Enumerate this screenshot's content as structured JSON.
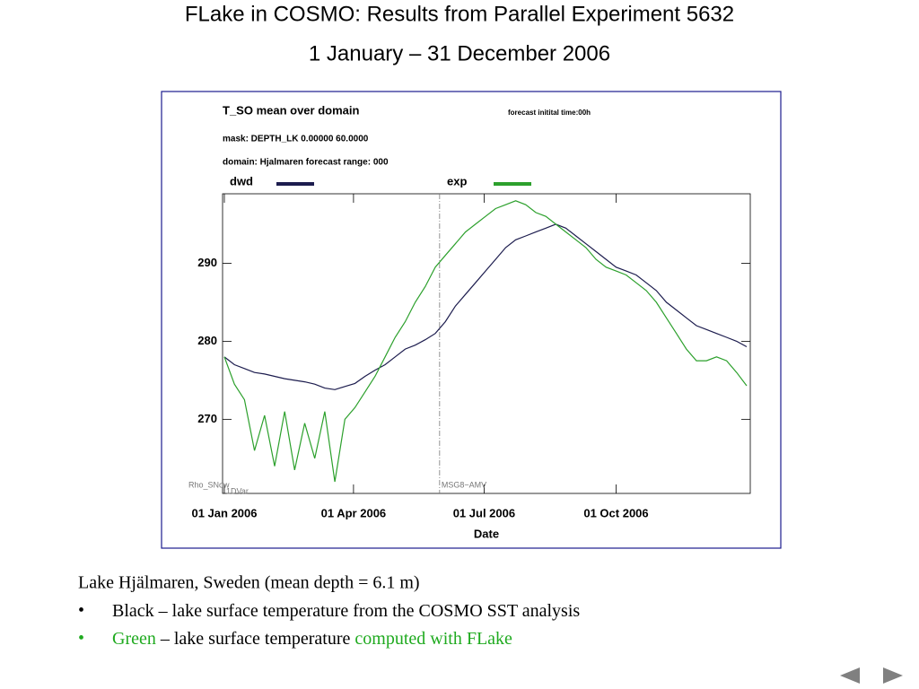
{
  "slide": {
    "title": "FLake in COSMO: Results from Parallel Experiment 5632",
    "subtitle": "1 January – 31 December 2006",
    "caption": "Lake Hjälmaren, Sweden (mean depth = 6.1 m)",
    "bullets": [
      {
        "parts": [
          "Black – lake  surface temperature from the COSMO SST analysis"
        ]
      },
      {
        "parts": [
          "Green",
          " – lake surface temperature ",
          "computed with FLake"
        ],
        "colors": [
          "#1faa1f",
          "#000000",
          "#1faa1f"
        ]
      }
    ]
  },
  "chart_data": {
    "type": "line",
    "title": "T_SO  mean over domain",
    "subtitles": [
      "mask: DEPTH_LK 0.00000 60.0000",
      "domain: Hjalmaren   forecast range: 000"
    ],
    "note": "forecast initital time:00h",
    "x_label": "Date",
    "annotations": [
      "Rho_SNow",
      "1DVar"
    ],
    "vline": {
      "x": "2006-05-31",
      "label": "MSG8−AMV"
    },
    "xlim": [
      "2006-01-01",
      "2006-12-31"
    ],
    "xticks": [
      {
        "value": "2006-01-01",
        "label": "01 Jan 2006"
      },
      {
        "value": "2006-04-01",
        "label": "01 Apr 2006"
      },
      {
        "value": "2006-07-01",
        "label": "01 Jul 2006"
      },
      {
        "value": "2006-10-01",
        "label": "01 Oct 2006"
      }
    ],
    "ylim": [
      260.5,
      298.9
    ],
    "yticks": [
      270,
      280,
      290
    ],
    "x": [
      "2006-01-01",
      "2006-01-08",
      "2006-01-15",
      "2006-01-22",
      "2006-01-29",
      "2006-02-05",
      "2006-02-12",
      "2006-02-19",
      "2006-02-26",
      "2006-03-05",
      "2006-03-12",
      "2006-03-19",
      "2006-03-26",
      "2006-04-02",
      "2006-04-09",
      "2006-04-16",
      "2006-04-23",
      "2006-04-30",
      "2006-05-07",
      "2006-05-14",
      "2006-05-21",
      "2006-05-28",
      "2006-06-04",
      "2006-06-11",
      "2006-06-18",
      "2006-06-25",
      "2006-07-02",
      "2006-07-09",
      "2006-07-16",
      "2006-07-23",
      "2006-07-30",
      "2006-08-06",
      "2006-08-13",
      "2006-08-20",
      "2006-08-27",
      "2006-09-03",
      "2006-09-10",
      "2006-09-17",
      "2006-09-24",
      "2006-10-01",
      "2006-10-08",
      "2006-10-15",
      "2006-10-22",
      "2006-10-29",
      "2006-11-05",
      "2006-11-12",
      "2006-11-19",
      "2006-11-26",
      "2006-12-03",
      "2006-12-10",
      "2006-12-17",
      "2006-12-24",
      "2006-12-31"
    ],
    "series": [
      {
        "name": "dwd",
        "color": "#1c1c4e",
        "values": [
          278.0,
          277.0,
          276.5,
          276.0,
          275.8,
          275.5,
          275.2,
          275.0,
          274.8,
          274.5,
          274.0,
          273.8,
          274.2,
          274.6,
          275.5,
          276.3,
          277.0,
          278.0,
          279.0,
          279.5,
          280.2,
          281.0,
          282.5,
          284.5,
          286.0,
          287.5,
          289.0,
          290.5,
          292.0,
          293.0,
          293.5,
          294.0,
          294.5,
          295.0,
          294.5,
          293.5,
          292.5,
          291.5,
          290.5,
          289.5,
          289.0,
          288.5,
          287.5,
          286.5,
          285.0,
          284.0,
          283.0,
          282.0,
          281.5,
          281.0,
          280.5,
          280.0,
          279.3
        ]
      },
      {
        "name": "exp",
        "color": "#2ca02c",
        "values": [
          278.0,
          274.5,
          272.5,
          266.0,
          270.5,
          264.0,
          271.0,
          263.5,
          269.5,
          265.0,
          271.0,
          262.0,
          270.0,
          271.5,
          273.5,
          275.5,
          278.0,
          280.5,
          282.5,
          285.0,
          287.0,
          289.5,
          291.0,
          292.5,
          294.0,
          295.0,
          296.0,
          297.0,
          297.5,
          298.0,
          297.5,
          296.5,
          296.0,
          295.0,
          294.0,
          293.0,
          292.0,
          290.5,
          289.5,
          289.0,
          288.5,
          287.5,
          286.5,
          285.0,
          283.0,
          281.0,
          279.0,
          277.5,
          277.5,
          278.0,
          277.5,
          276.0,
          274.3
        ]
      }
    ]
  }
}
